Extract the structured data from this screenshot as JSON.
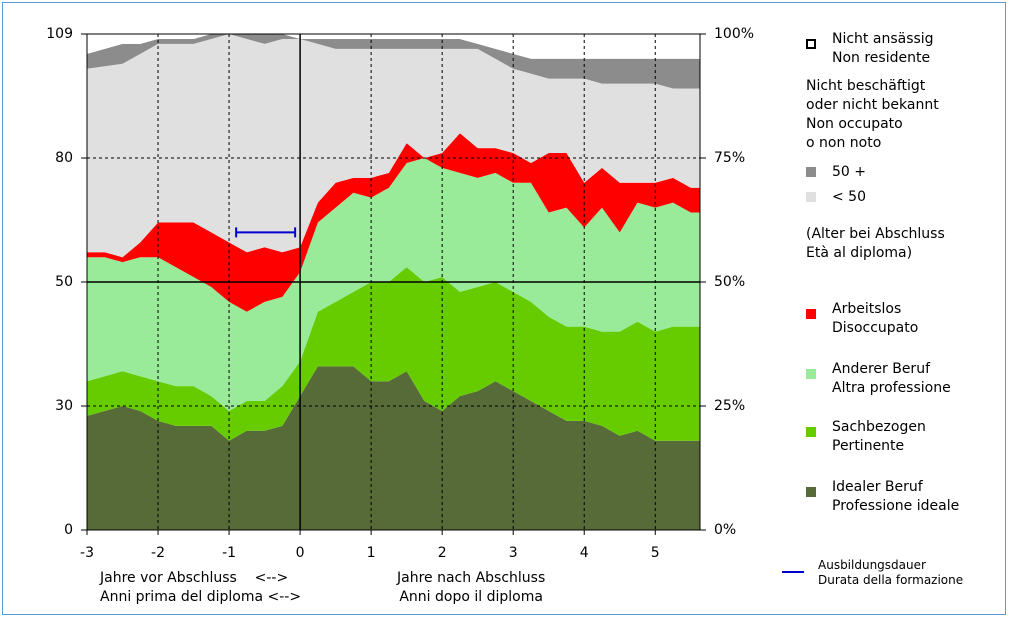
{
  "chart_data": {
    "type": "stacked_area",
    "x": [
      -3,
      -2.75,
      -2.5,
      -2.25,
      -2,
      -1.75,
      -1.5,
      -1.25,
      -1,
      -0.75,
      -0.5,
      -0.25,
      0,
      0.25,
      0.5,
      0.75,
      1,
      1.25,
      1.5,
      1.75,
      2,
      2.25,
      2.5,
      2.75,
      3,
      3.25,
      3.5,
      3.75,
      4,
      4.25,
      4.5,
      4.75,
      5,
      5.25,
      5.5,
      5.63
    ],
    "series": [
      {
        "name": "Idealer Beruf\nProfessione ideale",
        "color": "#566b38",
        "values": [
          23,
          24,
          25,
          24,
          22,
          21,
          21,
          21,
          18,
          20,
          20,
          21,
          27,
          33,
          33,
          33,
          30,
          30,
          32,
          26,
          24,
          27,
          28,
          30,
          28,
          26,
          24,
          22,
          22,
          21,
          19,
          20,
          18,
          18,
          18,
          18
        ]
      },
      {
        "name": "Sachbezogen\nPertinente",
        "color": "#66cc00",
        "values": [
          7,
          7,
          7,
          7,
          8,
          8,
          8,
          6,
          6,
          6,
          6,
          8,
          7,
          11,
          13,
          15,
          20,
          20,
          21,
          24,
          27,
          21,
          21,
          20,
          20,
          20,
          19,
          19,
          19,
          19,
          21,
          22,
          22,
          23,
          23,
          23
        ]
      },
      {
        "name": "Anderer Beruf\nAltra professione",
        "color": "#99ea99",
        "values": [
          25,
          24,
          22,
          24,
          25,
          24,
          22,
          22,
          22,
          18,
          20,
          18,
          18,
          18,
          19,
          20,
          17,
          19,
          21,
          25,
          22,
          24,
          22,
          22,
          22,
          24,
          21,
          24,
          20,
          25,
          20,
          24,
          25,
          25,
          23,
          23
        ]
      },
      {
        "name": "Arbeitslos\nDisoccupato",
        "color": "#ff0000",
        "values": [
          1,
          1,
          1,
          3,
          7,
          9,
          11,
          11,
          12,
          12,
          11,
          9,
          5,
          4,
          5,
          3,
          4,
          3,
          4,
          0,
          3,
          8,
          6,
          5,
          6,
          4,
          12,
          11,
          9,
          8,
          10,
          4,
          5,
          5,
          5,
          5
        ]
      },
      {
        "name": "< 50",
        "color": "#e0e0e0",
        "values": [
          37,
          37.5,
          39,
          38,
          36,
          36,
          36,
          39,
          42,
          43,
          41,
          43,
          42,
          32,
          27,
          26,
          26,
          25,
          19,
          22,
          21,
          17,
          20,
          18,
          17,
          18,
          15,
          15,
          21,
          17,
          20,
          20,
          20,
          18,
          20,
          20
        ]
      },
      {
        "name": "50 +",
        "color": "#8c8c8c",
        "values": [
          3,
          3.5,
          4,
          2,
          1,
          1,
          1,
          1,
          0,
          1,
          2,
          1,
          0,
          1,
          2,
          2,
          2,
          2,
          2,
          2,
          2,
          2,
          1,
          2,
          3,
          3,
          4,
          4,
          4,
          5,
          5,
          5,
          5,
          6,
          6,
          6
        ]
      },
      {
        "name": "Nicht ansässig\nNon residente",
        "color": "#ffffff",
        "values": [
          4,
          3,
          2,
          2,
          1,
          1,
          1,
          0,
          0,
          0,
          0,
          0,
          1,
          1,
          1,
          1,
          1,
          1,
          1,
          1,
          1,
          1,
          2,
          3,
          4,
          5,
          5,
          5,
          5,
          5,
          5,
          5,
          5,
          5,
          5,
          5
        ]
      }
    ],
    "legend_heading": "Nicht beschäftigt\noder nicht bekannt\nNon occupato\no non noto",
    "legend_note": "(Alter bei Abschluss\nEtà al diploma)",
    "duration": {
      "name": "Ausbildungsdauer\nDurata della formazione",
      "color": "#0000cc",
      "x": [
        -0.9,
        -0.07
      ],
      "y": 60
    },
    "xlabel_left": "Jahre vor Abschluss    <-->\nAnni prima del diploma <-->",
    "xlabel_right": "Jahre nach Abschluss\nAnni dopo il diploma",
    "xlim": [
      -3,
      5.63
    ],
    "xticks": [
      -3,
      -2,
      -1,
      0,
      1,
      2,
      3,
      4,
      5
    ],
    "ylim": [
      0,
      100
    ],
    "yticks": [
      {
        "value": 0,
        "label": "0%"
      },
      {
        "value": 25,
        "label": "25%"
      },
      {
        "value": 50,
        "label": "50%"
      },
      {
        "value": 75,
        "label": "75%"
      },
      {
        "value": 100,
        "label": "100%"
      }
    ],
    "left_ticks": [
      0,
      30,
      50,
      80,
      109
    ],
    "reference_lines": {
      "x": 0,
      "y": 50
    },
    "grid": true
  }
}
